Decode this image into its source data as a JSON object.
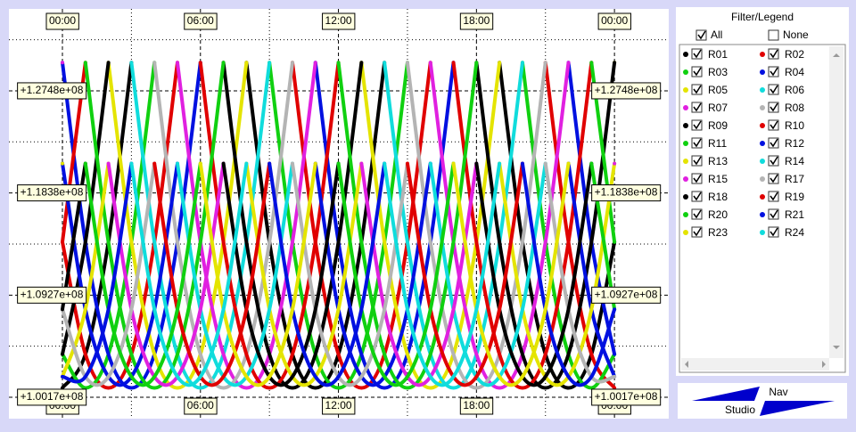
{
  "chart_data": {
    "type": "line",
    "x": [
      0,
      1,
      2,
      3,
      4,
      5,
      6,
      7,
      8,
      9,
      10,
      11,
      12,
      13,
      14,
      15,
      16,
      17,
      18,
      19,
      20,
      21,
      22,
      23,
      24
    ],
    "xlim": [
      -2.326,
      26.36
    ],
    "xticks": [
      {
        "value": 0,
        "label": "00:00"
      },
      {
        "value": 6,
        "label": "06:00"
      },
      {
        "value": 12,
        "label": "12:00"
      },
      {
        "value": 18,
        "label": "18:00"
      },
      {
        "value": 24,
        "label": "00:00"
      }
    ],
    "minor_xticks": [
      3,
      9,
      15,
      21
    ],
    "ylim": [
      98260000.0,
      134780000.0
    ],
    "yticks": [
      {
        "value": 127480000.0,
        "label": "+1.2748e+08"
      },
      {
        "value": 118380000.0,
        "label": "+1.1838e+08"
      },
      {
        "value": 109270000.0,
        "label": "+1.0927e+08"
      },
      {
        "value": 100170000.0,
        "label": "+1.0017e+08"
      }
    ],
    "minor_yticks": [
      132030000.0,
      122930000.0,
      113820000.0,
      104720000.0
    ],
    "grid": true,
    "series": [
      {
        "name": "R01",
        "color": "#000000",
        "values": [
          101000000.0,
          104000000.0,
          114000000.0,
          130000000.0,
          null,
          null,
          null,
          null,
          130000000.0,
          114000000.0,
          104000000.0,
          101000000.0,
          104000000.0,
          114000000.0,
          130000000.0,
          null,
          null,
          null,
          null,
          130000000.0,
          114000000.0,
          104000000.0,
          101000000.0,
          104000000.0,
          114000000.0
        ]
      },
      {
        "name": "R02",
        "color": "#e00000",
        "values": [
          114000000.0,
          104000000.0,
          101000000.0,
          104000000.0,
          114000000.0,
          130000000.0,
          null,
          null,
          null,
          null,
          130000000.0,
          114000000.0,
          104000000.0,
          101000000.0,
          104000000.0,
          114000000.0,
          130000000.0,
          null,
          null,
          null,
          null,
          130000000.0,
          114000000.0,
          104000000.0,
          101000000.0
        ]
      },
      {
        "name": "R03",
        "color": "#10d010",
        "values": [
          104000000.0,
          101000000.0,
          104000000.0,
          114000000.0,
          130000000.0,
          null,
          null,
          null,
          null,
          130000000.0,
          114000000.0,
          104000000.0,
          101000000.0,
          104000000.0,
          114000000.0,
          130000000.0,
          null,
          null,
          null,
          null,
          130000000.0,
          114000000.0,
          104000000.0,
          101000000.0,
          104000000.0
        ]
      },
      {
        "name": "R04",
        "color": "#0010e0",
        "values": [
          130000000.0,
          114000000.0,
          104000000.0,
          101000000.0,
          104000000.0,
          114000000.0,
          130000000.0,
          null,
          null,
          null,
          null,
          130000000.0,
          114000000.0,
          104000000.0,
          101000000.0,
          104000000.0,
          114000000.0,
          130000000.0,
          null,
          null,
          null,
          null,
          130000000.0,
          114000000.0,
          104000000.0
        ]
      },
      {
        "name": "R05",
        "color": "#e4e400",
        "values": [
          null,
          null,
          130000000.0,
          114000000.0,
          104000000.0,
          101000000.0,
          104000000.0,
          114000000.0,
          130000000.0,
          null,
          null,
          null,
          null,
          130000000.0,
          114000000.0,
          104000000.0,
          101000000.0,
          104000000.0,
          114000000.0,
          130000000.0,
          null,
          null,
          null,
          null,
          130000000.0
        ]
      },
      {
        "name": "R06",
        "color": "#10dcdc",
        "values": [
          null,
          null,
          null,
          130000000.0,
          114000000.0,
          104000000.0,
          101000000.0,
          104000000.0,
          114000000.0,
          130000000.0,
          null,
          null,
          null,
          null,
          130000000.0,
          114000000.0,
          104000000.0,
          101000000.0,
          104000000.0,
          114000000.0,
          130000000.0,
          null,
          null,
          null,
          null
        ]
      },
      {
        "name": "R07",
        "color": "#e020e0",
        "values": [
          130000000.0,
          null,
          null,
          null,
          null,
          130000000.0,
          114000000.0,
          104000000.0,
          101000000.0,
          104000000.0,
          114000000.0,
          130000000.0,
          null,
          null,
          null,
          null,
          130000000.0,
          114000000.0,
          104000000.0,
          101000000.0,
          104000000.0,
          114000000.0,
          130000000.0,
          null,
          null
        ]
      },
      {
        "name": "R08",
        "color": "#b4b4b4",
        "values": [
          null,
          null,
          null,
          null,
          130000000.0,
          114000000.0,
          104000000.0,
          101000000.0,
          104000000.0,
          114000000.0,
          130000000.0,
          null,
          null,
          null,
          null,
          130000000.0,
          114000000.0,
          104000000.0,
          101000000.0,
          104000000.0,
          114000000.0,
          130000000.0,
          null,
          null,
          null
        ]
      },
      {
        "name": "R09",
        "color": "#000000",
        "values": [
          104000000.0,
          114000000.0,
          130000000.0,
          null,
          null,
          null,
          null,
          130000000.0,
          114000000.0,
          104000000.0,
          101000000.0,
          104000000.0,
          114000000.0,
          130000000.0,
          null,
          null,
          null,
          null,
          130000000.0,
          114000000.0,
          104000000.0,
          101000000.0,
          104000000.0,
          114000000.0,
          130000000.0
        ]
      },
      {
        "name": "R10",
        "color": "#e00000",
        "values": [
          114000000.0,
          130000000.0,
          null,
          null,
          null,
          null,
          130000000.0,
          114000000.0,
          104000000.0,
          101000000.0,
          104000000.0,
          114000000.0,
          130000000.0,
          null,
          null,
          null,
          null,
          130000000.0,
          114000000.0,
          104000000.0,
          101000000.0,
          104000000.0,
          114000000.0,
          130000000.0,
          null
        ]
      },
      {
        "name": "R11",
        "color": "#10d010",
        "values": [
          null,
          130000000.0,
          114000000.0,
          104000000.0,
          101000000.0,
          104000000.0,
          114000000.0,
          130000000.0,
          null,
          null,
          null,
          null,
          130000000.0,
          114000000.0,
          104000000.0,
          101000000.0,
          104000000.0,
          114000000.0,
          130000000.0,
          null,
          null,
          null,
          null,
          130000000.0,
          114000000.0
        ]
      },
      {
        "name": "R12",
        "color": "#0010e0",
        "values": [
          121000000.0,
          108000000.0,
          102000000.0,
          102000000.0,
          108000000.0,
          121000000.0,
          null,
          null,
          null,
          null,
          null,
          121000000.0,
          108000000.0,
          102000000.0,
          102000000.0,
          108000000.0,
          121000000.0,
          null,
          null,
          null,
          null,
          null,
          121000000.0,
          108000000.0,
          102000000.0
        ]
      },
      {
        "name": "R13",
        "color": "#e4e400",
        "values": [
          102000000.0,
          108000000.0,
          121000000.0,
          null,
          null,
          null,
          null,
          null,
          121000000.0,
          108000000.0,
          102000000.0,
          102000000.0,
          108000000.0,
          121000000.0,
          null,
          null,
          null,
          null,
          null,
          121000000.0,
          108000000.0,
          102000000.0,
          102000000.0,
          108000000.0,
          121000000.0
        ]
      },
      {
        "name": "R14",
        "color": "#10dcdc",
        "values": [
          null,
          null,
          null,
          null,
          null,
          121000000.0,
          108000000.0,
          102000000.0,
          102000000.0,
          108000000.0,
          121000000.0,
          null,
          null,
          null,
          null,
          null,
          121000000.0,
          108000000.0,
          102000000.0,
          102000000.0,
          108000000.0,
          121000000.0,
          null,
          null,
          null
        ]
      },
      {
        "name": "R15",
        "color": "#e020e0",
        "values": [
          null,
          null,
          121000000.0,
          108000000.0,
          102000000.0,
          102000000.0,
          108000000.0,
          121000000.0,
          null,
          null,
          null,
          null,
          null,
          121000000.0,
          108000000.0,
          102000000.0,
          102000000.0,
          108000000.0,
          121000000.0,
          null,
          null,
          null,
          null,
          null,
          121000000.0
        ]
      },
      {
        "name": "R17",
        "color": "#b4b4b4",
        "values": [
          108000000.0,
          102000000.0,
          102000000.0,
          108000000.0,
          121000000.0,
          null,
          null,
          null,
          null,
          null,
          121000000.0,
          108000000.0,
          102000000.0,
          102000000.0,
          108000000.0,
          121000000.0,
          null,
          null,
          null,
          null,
          null,
          121000000.0,
          108000000.0,
          102000000.0,
          102000000.0
        ]
      },
      {
        "name": "R18",
        "color": "#000000",
        "values": [
          108000000.0,
          121000000.0,
          null,
          null,
          null,
          null,
          null,
          121000000.0,
          108000000.0,
          102000000.0,
          102000000.0,
          108000000.0,
          121000000.0,
          null,
          null,
          null,
          null,
          null,
          121000000.0,
          108000000.0,
          102000000.0,
          102000000.0,
          108000000.0,
          121000000.0,
          null
        ]
      },
      {
        "name": "R19",
        "color": "#e00000",
        "values": [
          null,
          null,
          null,
          null,
          121000000.0,
          108000000.0,
          102000000.0,
          102000000.0,
          108000000.0,
          121000000.0,
          null,
          null,
          null,
          null,
          null,
          121000000.0,
          108000000.0,
          102000000.0,
          102000000.0,
          108000000.0,
          121000000.0,
          null,
          null,
          null,
          null
        ]
      },
      {
        "name": "R20",
        "color": "#10d010",
        "values": [
          null,
          121000000.0,
          108000000.0,
          102000000.0,
          102000000.0,
          108000000.0,
          121000000.0,
          null,
          null,
          null,
          null,
          null,
          121000000.0,
          108000000.0,
          102000000.0,
          102000000.0,
          108000000.0,
          121000000.0,
          null,
          null,
          null,
          null,
          null,
          121000000.0,
          108000000.0
        ]
      },
      {
        "name": "R21",
        "color": "#0010e0",
        "values": [
          102000000.0,
          102000000.0,
          108000000.0,
          121000000.0,
          null,
          null,
          null,
          null,
          null,
          121000000.0,
          108000000.0,
          102000000.0,
          102000000.0,
          108000000.0,
          121000000.0,
          null,
          null,
          null,
          null,
          null,
          121000000.0,
          108000000.0,
          102000000.0,
          102000000.0,
          108000000.0
        ]
      },
      {
        "name": "R23",
        "color": "#e4e400",
        "values": [
          121000000.0,
          null,
          null,
          null,
          null,
          null,
          121000000.0,
          108000000.0,
          102000000.0,
          102000000.0,
          108000000.0,
          121000000.0,
          null,
          null,
          null,
          null,
          null,
          121000000.0,
          108000000.0,
          102000000.0,
          102000000.0,
          108000000.0,
          121000000.0,
          null,
          null
        ]
      },
      {
        "name": "R24",
        "color": "#10dcdc",
        "values": [
          null,
          null,
          null,
          121000000.0,
          108000000.0,
          102000000.0,
          102000000.0,
          108000000.0,
          121000000.0,
          null,
          null,
          null,
          null,
          null,
          121000000.0,
          108000000.0,
          102000000.0,
          102000000.0,
          108000000.0,
          121000000.0,
          null,
          null,
          null,
          null,
          null
        ]
      }
    ]
  },
  "legend_panel": {
    "title": "Filter/Legend",
    "all": "All",
    "none": "None"
  },
  "nav": {
    "top": "Nav",
    "bottom": "Studio"
  }
}
